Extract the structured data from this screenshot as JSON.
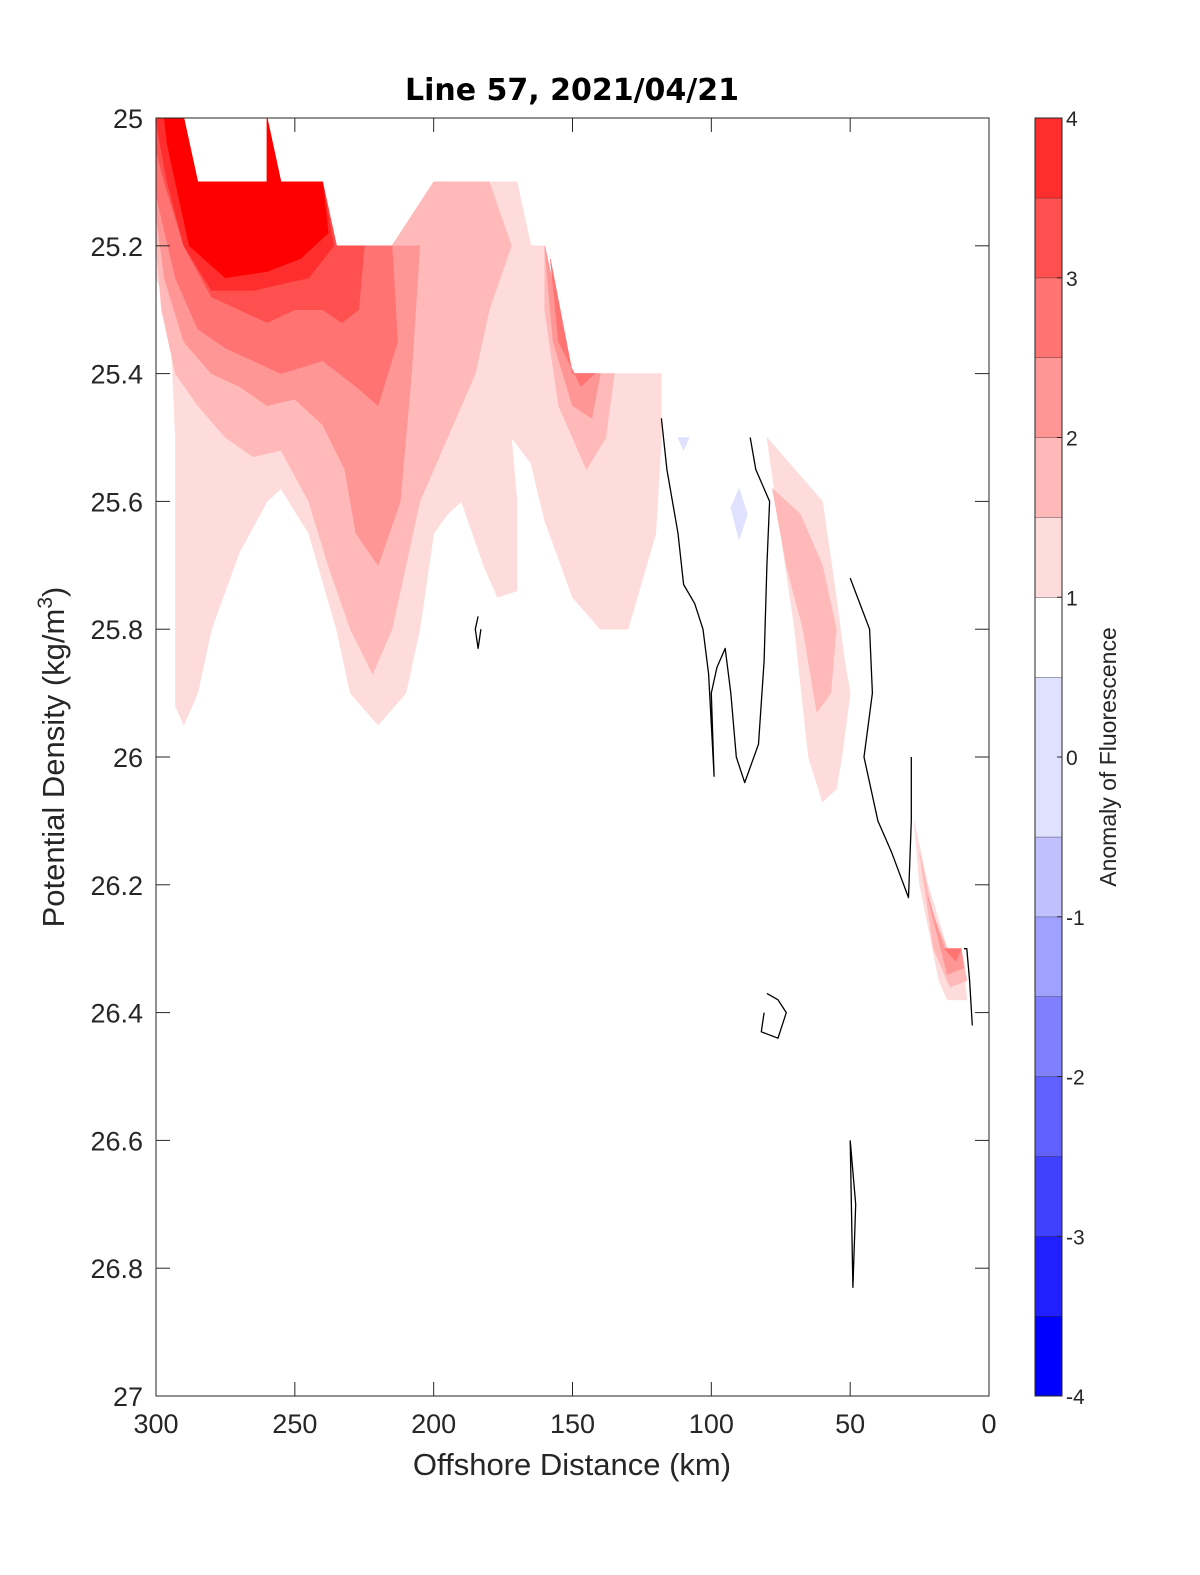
{
  "chart_data": {
    "type": "contour",
    "title": "Line 57, 2021/04/21",
    "xlabel": "Offshore Distance (km)",
    "ylabel_parts": {
      "main": "Potential Density (kg/m",
      "sup": "3",
      "end": ")"
    },
    "xlim": [
      300,
      0
    ],
    "x_reversed": true,
    "ylim": [
      25,
      27
    ],
    "y_reversed": true,
    "xticks": [
      300,
      250,
      200,
      150,
      100,
      50,
      0
    ],
    "yticks": [
      25,
      25.2,
      25.4,
      25.6,
      25.8,
      26,
      26.2,
      26.4,
      26.6,
      26.8,
      27
    ],
    "colorbar": {
      "label": "Anomaly of Fluorescence",
      "range": [
        -4,
        4
      ],
      "levels": [
        -4,
        -3.5,
        -3,
        -2.5,
        -2,
        -1.5,
        -1,
        -0.5,
        0.5,
        1,
        1.5,
        2,
        2.5,
        3,
        3.5,
        4
      ],
      "ticks": [
        4,
        3,
        2,
        1,
        0,
        -1,
        -2,
        -3,
        -4
      ],
      "colors": [
        "#0000ff",
        "#2020ff",
        "#4040ff",
        "#6060ff",
        "#8080ff",
        "#a0a0ff",
        "#c0c0ff",
        "#e0e0ff",
        "#ffffff",
        "#ffdcdc",
        "#ffb9b9",
        "#ff9696",
        "#ff7373",
        "#ff5050",
        "#ff2e2e",
        "#ff0000"
      ]
    },
    "filled_regions": [
      {
        "level": 0.5,
        "color": "#ffdcdc",
        "points": [
          [
            300,
            25
          ],
          [
            290,
            25
          ],
          [
            285,
            25.1
          ],
          [
            260,
            25.1
          ],
          [
            260,
            25
          ],
          [
            255,
            25.1
          ],
          [
            240,
            25.1
          ],
          [
            235,
            25.2
          ],
          [
            215,
            25.2
          ],
          [
            200,
            25.1
          ],
          [
            170,
            25.1
          ],
          [
            165,
            25.2
          ],
          [
            160,
            25.2
          ],
          [
            150,
            25.4
          ],
          [
            118,
            25.4
          ],
          [
            118,
            25.5
          ],
          [
            120,
            25.65
          ],
          [
            130,
            25.8
          ],
          [
            140,
            25.8
          ],
          [
            150,
            25.75
          ],
          [
            160,
            25.63
          ],
          [
            165,
            25.54
          ],
          [
            172,
            25.5
          ],
          [
            170,
            25.6
          ],
          [
            170,
            25.74
          ],
          [
            177,
            25.75
          ],
          [
            182,
            25.7
          ],
          [
            190,
            25.6
          ],
          [
            195,
            25.62
          ],
          [
            200,
            25.65
          ],
          [
            205,
            25.8
          ],
          [
            210,
            25.9
          ],
          [
            220,
            25.95
          ],
          [
            230,
            25.9
          ],
          [
            235,
            25.8
          ],
          [
            245,
            25.65
          ],
          [
            255,
            25.58
          ],
          [
            260,
            25.6
          ],
          [
            270,
            25.68
          ],
          [
            280,
            25.8
          ],
          [
            285,
            25.9
          ],
          [
            290,
            25.95
          ],
          [
            293,
            25.92
          ],
          [
            293,
            25.5
          ],
          [
            295,
            25.3
          ],
          [
            300,
            25.25
          ]
        ]
      },
      {
        "level": 0.5,
        "color": "#ffdcdc",
        "points": [
          [
            80,
            25.5
          ],
          [
            75,
            25.65
          ],
          [
            70,
            25.8
          ],
          [
            65,
            26
          ],
          [
            60,
            26.07
          ],
          [
            55,
            26.05
          ],
          [
            53,
            26
          ],
          [
            50,
            25.9
          ],
          [
            52,
            25.85
          ],
          [
            55,
            25.75
          ],
          [
            60,
            25.6
          ],
          [
            70,
            25.55
          ]
        ]
      },
      {
        "level": 0.5,
        "color": "#ffdcdc",
        "points": [
          [
            27,
            26.1
          ],
          [
            22,
            26.2
          ],
          [
            15,
            26.3
          ],
          [
            10,
            26.3
          ],
          [
            8,
            26.38
          ],
          [
            15,
            26.38
          ],
          [
            18,
            26.35
          ],
          [
            25,
            26.2
          ]
        ]
      },
      {
        "level": 1.0,
        "color": "#ffb9b9",
        "points": [
          [
            300,
            25
          ],
          [
            290,
            25
          ],
          [
            285,
            25.1
          ],
          [
            260,
            25.1
          ],
          [
            260,
            25
          ],
          [
            255,
            25.1
          ],
          [
            240,
            25.1
          ],
          [
            235,
            25.2
          ],
          [
            215,
            25.2
          ],
          [
            200,
            25.1
          ],
          [
            180,
            25.1
          ],
          [
            172,
            25.2
          ],
          [
            180,
            25.3
          ],
          [
            185,
            25.4
          ],
          [
            195,
            25.5
          ],
          [
            205,
            25.6
          ],
          [
            210,
            25.7
          ],
          [
            215,
            25.8
          ],
          [
            222,
            25.87
          ],
          [
            230,
            25.8
          ],
          [
            238,
            25.7
          ],
          [
            245,
            25.6
          ],
          [
            255,
            25.52
          ],
          [
            265,
            25.53
          ],
          [
            275,
            25.5
          ],
          [
            285,
            25.45
          ],
          [
            293,
            25.4
          ],
          [
            298,
            25.3
          ],
          [
            300,
            25.2
          ]
        ]
      },
      {
        "level": 1.0,
        "color": "#ffb9b9",
        "points": [
          [
            160,
            25.2
          ],
          [
            150,
            25.4
          ],
          [
            135,
            25.4
          ],
          [
            138,
            25.5
          ],
          [
            145,
            25.55
          ],
          [
            155,
            25.45
          ],
          [
            160,
            25.3
          ]
        ]
      },
      {
        "level": 1.0,
        "color": "#ffb9b9",
        "points": [
          [
            78,
            25.58
          ],
          [
            73,
            25.7
          ],
          [
            67,
            25.8
          ],
          [
            62,
            25.93
          ],
          [
            57,
            25.9
          ],
          [
            55,
            25.8
          ],
          [
            60,
            25.7
          ],
          [
            68,
            25.62
          ]
        ]
      },
      {
        "level": 1.0,
        "color": "#ffb9b9",
        "points": [
          [
            25,
            26.15
          ],
          [
            20,
            26.25
          ],
          [
            15,
            26.3
          ],
          [
            10,
            26.3
          ],
          [
            8,
            26.35
          ],
          [
            14,
            26.36
          ],
          [
            20,
            26.3
          ]
        ]
      },
      {
        "level": 1.5,
        "color": "#ff9696",
        "points": [
          [
            300,
            25
          ],
          [
            290,
            25
          ],
          [
            285,
            25.1
          ],
          [
            260,
            25.1
          ],
          [
            260,
            25
          ],
          [
            255,
            25.1
          ],
          [
            240,
            25.1
          ],
          [
            235,
            25.2
          ],
          [
            215,
            25.2
          ],
          [
            205,
            25.2
          ],
          [
            208,
            25.4
          ],
          [
            212,
            25.6
          ],
          [
            220,
            25.7
          ],
          [
            228,
            25.65
          ],
          [
            232,
            25.55
          ],
          [
            240,
            25.48
          ],
          [
            250,
            25.44
          ],
          [
            260,
            25.45
          ],
          [
            270,
            25.42
          ],
          [
            280,
            25.4
          ],
          [
            290,
            25.35
          ],
          [
            297,
            25.25
          ],
          [
            300,
            25.15
          ]
        ]
      },
      {
        "level": 1.5,
        "color": "#ff9696",
        "points": [
          [
            160,
            25.2
          ],
          [
            150,
            25.4
          ],
          [
            140,
            25.4
          ],
          [
            143,
            25.47
          ],
          [
            150,
            25.45
          ],
          [
            157,
            25.35
          ]
        ]
      },
      {
        "level": 1.5,
        "color": "#ff9696",
        "points": [
          [
            22,
            26.22
          ],
          [
            16,
            26.3
          ],
          [
            10,
            26.3
          ],
          [
            9,
            26.33
          ],
          [
            15,
            26.34
          ]
        ]
      },
      {
        "level": 2.0,
        "color": "#ff7373",
        "points": [
          [
            300,
            25
          ],
          [
            290,
            25
          ],
          [
            285,
            25.1
          ],
          [
            260,
            25.1
          ],
          [
            260,
            25
          ],
          [
            255,
            25.1
          ],
          [
            240,
            25.1
          ],
          [
            235,
            25.2
          ],
          [
            215,
            25.2
          ],
          [
            213,
            25.35
          ],
          [
            220,
            25.45
          ],
          [
            228,
            25.42
          ],
          [
            240,
            25.38
          ],
          [
            255,
            25.4
          ],
          [
            265,
            25.38
          ],
          [
            275,
            25.36
          ],
          [
            285,
            25.33
          ],
          [
            293,
            25.25
          ],
          [
            300,
            25.12
          ]
        ]
      },
      {
        "level": 2.0,
        "color": "#ff7373",
        "points": [
          [
            158,
            25.22
          ],
          [
            150,
            25.4
          ],
          [
            142,
            25.4
          ],
          [
            147,
            25.42
          ],
          [
            155,
            25.35
          ]
        ]
      },
      {
        "level": 2.0,
        "color": "#ff7373",
        "points": [
          [
            16,
            26.3
          ],
          [
            10,
            26.3
          ],
          [
            12,
            26.32
          ]
        ]
      },
      {
        "level": 2.5,
        "color": "#ff5050",
        "points": [
          [
            300,
            25
          ],
          [
            290,
            25
          ],
          [
            285,
            25.1
          ],
          [
            260,
            25.1
          ],
          [
            260,
            25
          ],
          [
            255,
            25.1
          ],
          [
            240,
            25.1
          ],
          [
            235,
            25.2
          ],
          [
            225,
            25.2
          ],
          [
            227,
            25.3
          ],
          [
            233,
            25.32
          ],
          [
            240,
            25.3
          ],
          [
            250,
            25.3
          ],
          [
            260,
            25.32
          ],
          [
            270,
            25.3
          ],
          [
            280,
            25.28
          ],
          [
            290,
            25.2
          ],
          [
            297,
            25.1
          ],
          [
            300,
            25.05
          ]
        ]
      },
      {
        "level": 3.0,
        "color": "#ff2e2e",
        "points": [
          [
            300,
            25
          ],
          [
            290,
            25
          ],
          [
            285,
            25.1
          ],
          [
            260,
            25.1
          ],
          [
            260,
            25
          ],
          [
            255,
            25.1
          ],
          [
            240,
            25.1
          ],
          [
            236,
            25.2
          ],
          [
            245,
            25.25
          ],
          [
            255,
            25.26
          ],
          [
            265,
            25.27
          ],
          [
            280,
            25.27
          ],
          [
            290,
            25.2
          ],
          [
            296,
            25.1
          ],
          [
            299,
            25.03
          ]
        ]
      },
      {
        "level": 3.5,
        "color": "#ff0000",
        "points": [
          [
            297,
            25
          ],
          [
            290,
            25
          ],
          [
            285,
            25.1
          ],
          [
            260,
            25.1
          ],
          [
            260,
            25
          ],
          [
            255,
            25.1
          ],
          [
            240,
            25.1
          ],
          [
            238,
            25.18
          ],
          [
            248,
            25.22
          ],
          [
            260,
            25.24
          ],
          [
            275,
            25.25
          ],
          [
            288,
            25.2
          ],
          [
            293,
            25.1
          ],
          [
            296,
            25.04
          ]
        ]
      }
    ],
    "negative_patches": [
      {
        "level": -0.5,
        "color": "#e0e0ff",
        "points": [
          [
            112,
            25.5
          ],
          [
            108,
            25.5
          ],
          [
            110,
            25.52
          ]
        ]
      },
      {
        "level": -0.5,
        "color": "#e0e0ff",
        "points": [
          [
            93,
            25.61
          ],
          [
            90,
            25.58
          ],
          [
            87,
            25.62
          ],
          [
            90,
            25.66
          ]
        ]
      }
    ],
    "contour_lines": [
      [
        [
          118,
          25.47
        ],
        [
          116,
          25.55
        ],
        [
          112,
          25.65
        ],
        [
          110,
          25.73
        ],
        [
          106,
          25.76
        ],
        [
          103,
          25.8
        ],
        [
          101,
          25.87
        ],
        [
          99,
          26.03
        ],
        [
          100,
          25.9
        ],
        [
          98,
          25.86
        ],
        [
          95,
          25.83
        ],
        [
          93,
          25.9
        ],
        [
          91,
          26
        ],
        [
          88,
          26.04
        ],
        [
          83,
          25.98
        ],
        [
          81,
          25.85
        ],
        [
          80,
          25.7
        ],
        [
          79,
          25.6
        ],
        [
          84,
          25.55
        ],
        [
          86,
          25.5
        ]
      ],
      [
        [
          50,
          25.72
        ],
        [
          43,
          25.8
        ],
        [
          42,
          25.9
        ],
        [
          45,
          26
        ],
        [
          40,
          26.1
        ],
        [
          35,
          26.15
        ],
        [
          29,
          26.22
        ],
        [
          28,
          26.1
        ],
        [
          28,
          26
        ]
      ],
      [
        [
          6,
          26.42
        ],
        [
          7,
          26.35
        ],
        [
          8,
          26.3
        ],
        [
          9,
          26.3
        ]
      ],
      [
        [
          184,
          25.78
        ],
        [
          185,
          25.8
        ],
        [
          184,
          25.83
        ],
        [
          183,
          25.8
        ]
      ],
      [
        [
          80,
          26.37
        ],
        [
          76,
          26.38
        ],
        [
          73,
          26.4
        ],
        [
          76,
          26.44
        ],
        [
          82,
          26.43
        ],
        [
          81,
          26.4
        ]
      ],
      [
        [
          50,
          26.6
        ],
        [
          48,
          26.7
        ],
        [
          49,
          26.83
        ],
        [
          50,
          26.6
        ]
      ]
    ]
  }
}
